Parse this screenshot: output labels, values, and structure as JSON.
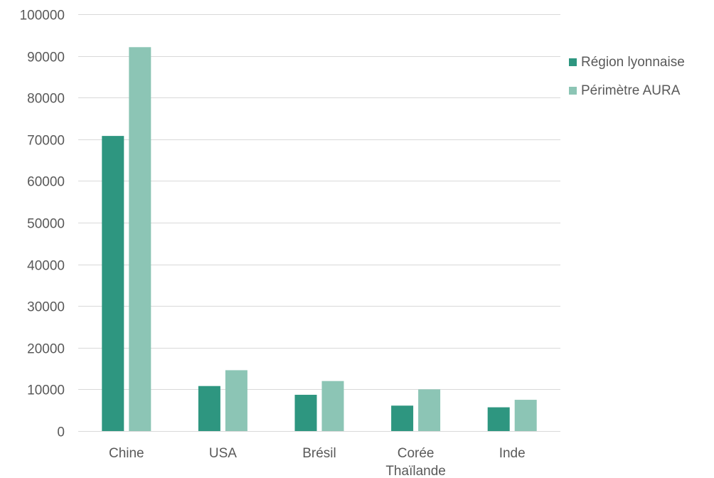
{
  "chart_data": {
    "type": "bar",
    "title": "",
    "xlabel": "",
    "ylabel": "",
    "categories": [
      "Chine",
      "USA",
      "Brésil",
      "Corée Thaïlande",
      "Inde"
    ],
    "category_lines": [
      [
        "Chine"
      ],
      [
        "USA"
      ],
      [
        "Brésil"
      ],
      [
        "Corée",
        "Thaïlande"
      ],
      [
        "Inde"
      ]
    ],
    "series": [
      {
        "name": "Région lyonnaise",
        "color": "#2e9680",
        "values": [
          70800,
          10800,
          8700,
          6100,
          5700
        ]
      },
      {
        "name": "Périmètre AURA",
        "color": "#8cc5b5",
        "values": [
          92100,
          14600,
          12000,
          10000,
          7500
        ]
      }
    ],
    "ylim": [
      0,
      100000
    ],
    "yticks": [
      0,
      10000,
      20000,
      30000,
      40000,
      50000,
      60000,
      70000,
      80000,
      90000,
      100000
    ],
    "grid": true,
    "legend_position": "right",
    "colors": {
      "grid": "#d9d9d9",
      "text": "#595959"
    }
  }
}
